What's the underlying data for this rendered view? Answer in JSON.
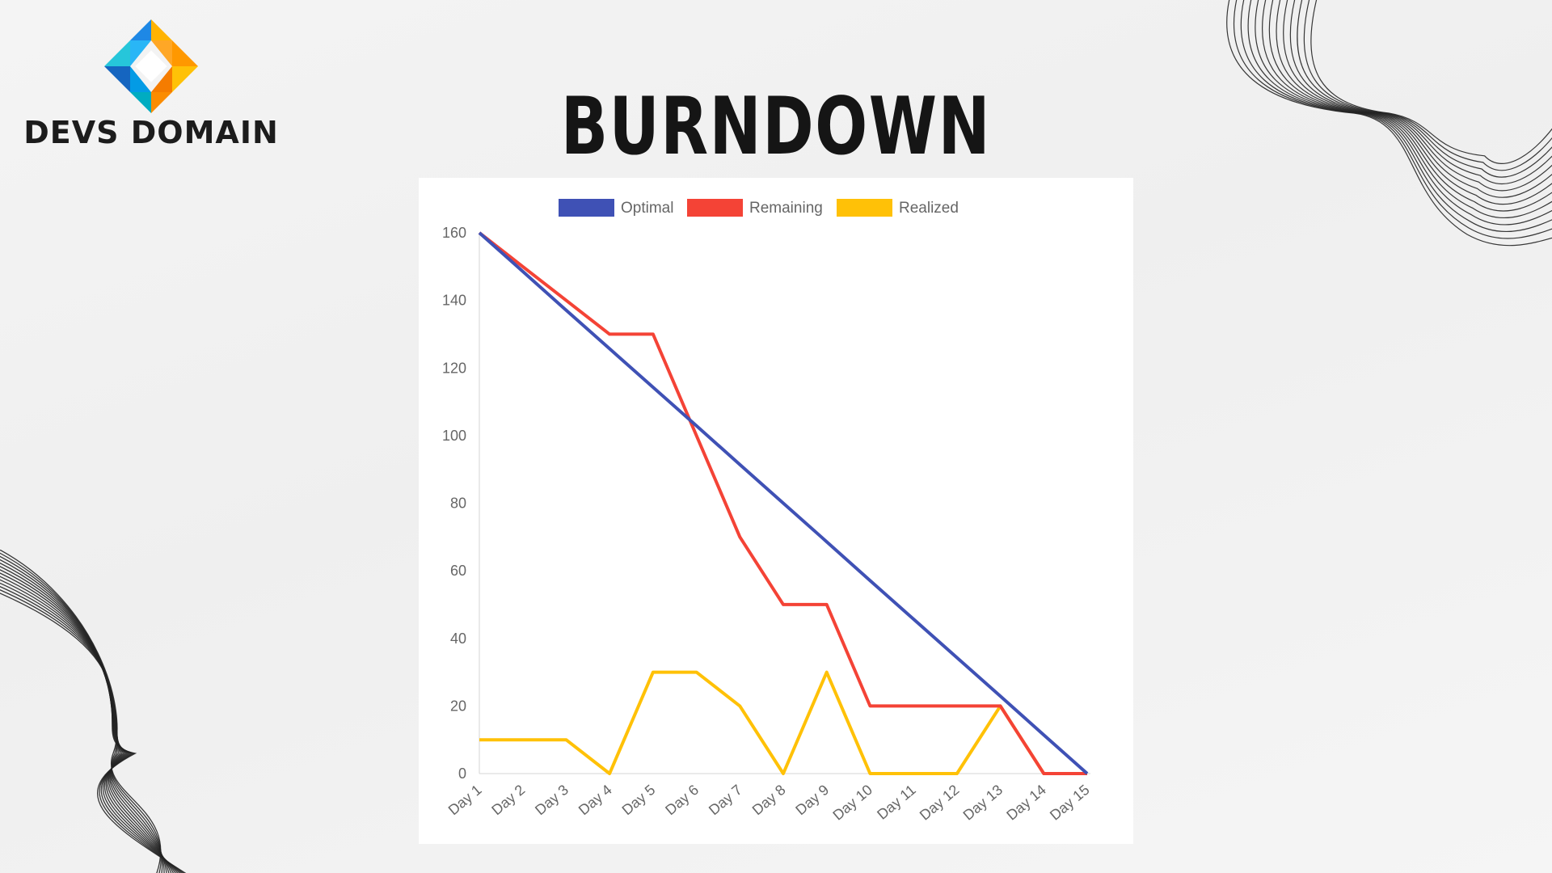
{
  "brand": {
    "name": "DEVS DOMAIN",
    "logo_icon": "diamond-logo-icon",
    "colors": {
      "blue": "#1e88e5",
      "teal": "#13b7c4",
      "orange": "#ff9800",
      "yellow": "#ffc107"
    }
  },
  "page": {
    "title": "BURNDOWN",
    "background": "#f2f2f2"
  },
  "chart_data": {
    "type": "line",
    "title": "",
    "xlabel": "",
    "ylabel": "",
    "categories": [
      "Day 1",
      "Day 2",
      "Day 3",
      "Day 4",
      "Day 5",
      "Day 6",
      "Day 7",
      "Day 8",
      "Day 9",
      "Day 10",
      "Day 11",
      "Day 12",
      "Day 13",
      "Day 14",
      "Day 15"
    ],
    "ylim": [
      0,
      160
    ],
    "yticks": [
      0,
      20,
      40,
      60,
      80,
      100,
      120,
      140,
      160
    ],
    "grid": false,
    "legend": "top-center",
    "series": [
      {
        "name": "Optimal",
        "color": "#3f51b5",
        "values": [
          160,
          148.6,
          137.1,
          125.7,
          114.3,
          102.9,
          91.4,
          80,
          68.6,
          57.1,
          45.7,
          34.3,
          22.9,
          11.4,
          0
        ]
      },
      {
        "name": "Remaining",
        "color": "#f44336",
        "values": [
          160,
          150,
          140,
          130,
          130,
          100,
          70,
          50,
          50,
          20,
          20,
          20,
          20,
          0,
          0
        ]
      },
      {
        "name": "Realized",
        "color": "#ffc107",
        "values": [
          10,
          10,
          10,
          0,
          30,
          30,
          20,
          0,
          30,
          0,
          0,
          0,
          20,
          0,
          0
        ]
      }
    ]
  }
}
